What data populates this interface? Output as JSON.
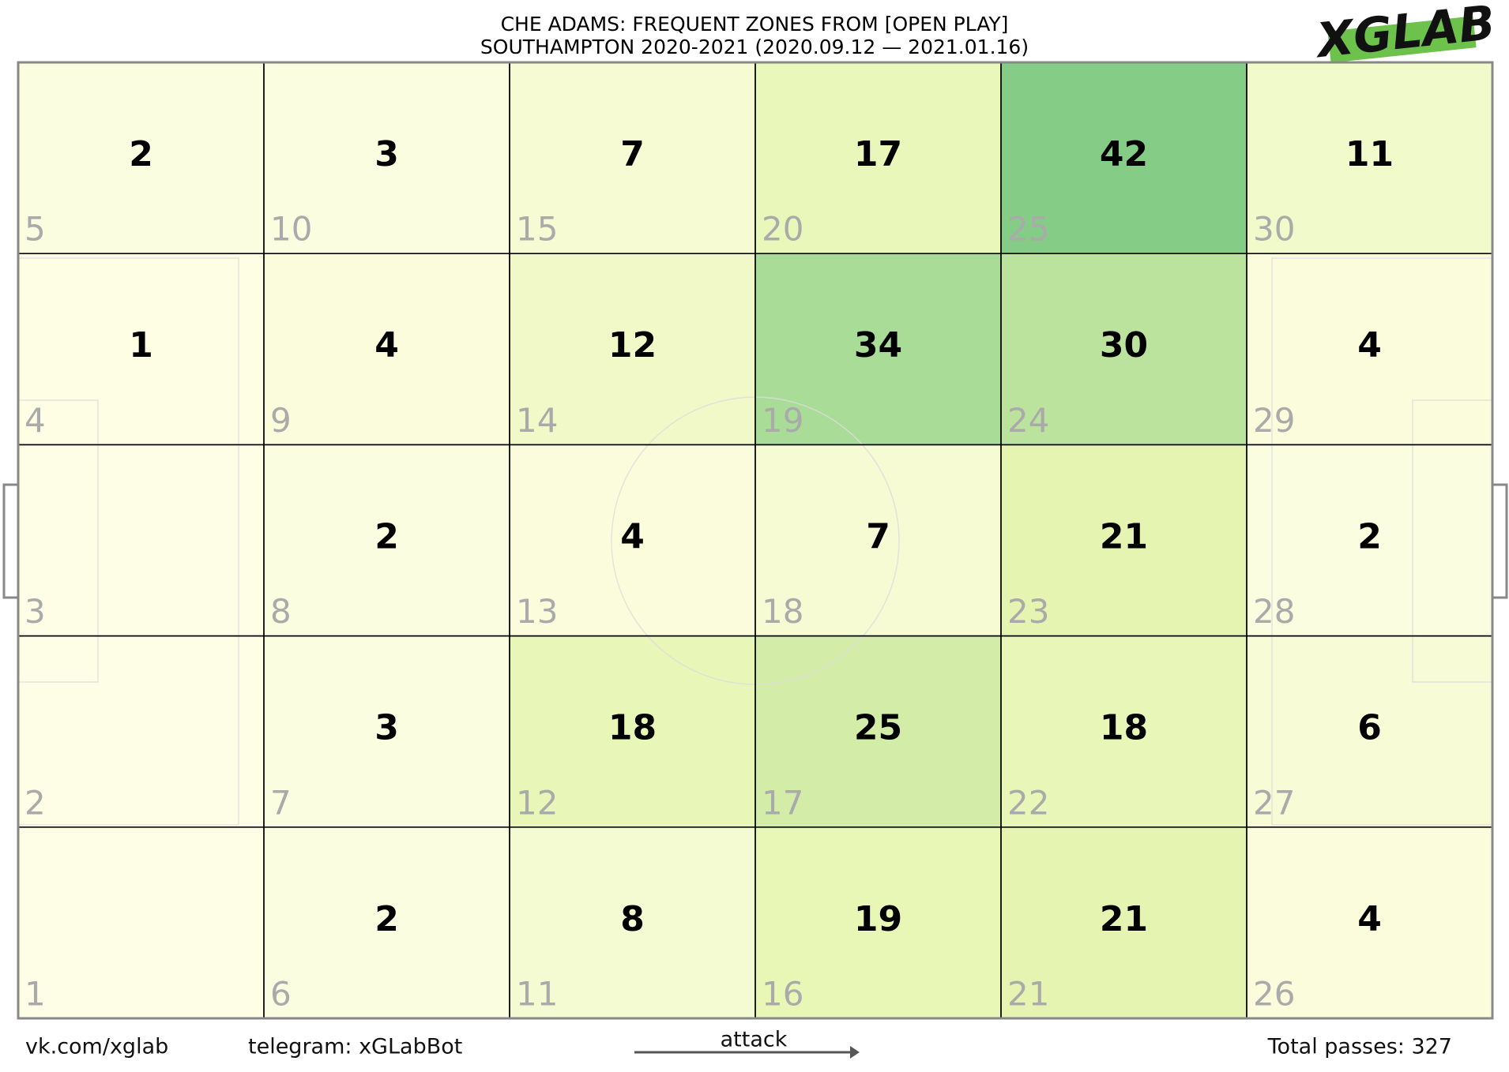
{
  "chart_data": {
    "type": "zone-heatmap",
    "title": "CHE ADAMS: FREQUENT ZONES FROM [OPEN PLAY]",
    "subtitle": "SOUTHAMPTON 2020-2021 (2020.09.12 — 2021.01.16)",
    "logo": "XGLAB",
    "columns": 6,
    "rows": 5,
    "zones": [
      {
        "id": 1,
        "value": null
      },
      {
        "id": 2,
        "value": null
      },
      {
        "id": 3,
        "value": null
      },
      {
        "id": 4,
        "value": 1
      },
      {
        "id": 5,
        "value": 2
      },
      {
        "id": 6,
        "value": 2
      },
      {
        "id": 7,
        "value": 3
      },
      {
        "id": 8,
        "value": 2
      },
      {
        "id": 9,
        "value": 4
      },
      {
        "id": 10,
        "value": 3
      },
      {
        "id": 11,
        "value": 8
      },
      {
        "id": 12,
        "value": 18
      },
      {
        "id": 13,
        "value": 4
      },
      {
        "id": 14,
        "value": 12
      },
      {
        "id": 15,
        "value": 7
      },
      {
        "id": 16,
        "value": 19
      },
      {
        "id": 17,
        "value": 25
      },
      {
        "id": 18,
        "value": 7
      },
      {
        "id": 19,
        "value": 34
      },
      {
        "id": 20,
        "value": 17
      },
      {
        "id": 21,
        "value": 21
      },
      {
        "id": 22,
        "value": 18
      },
      {
        "id": 23,
        "value": 21
      },
      {
        "id": 24,
        "value": 30
      },
      {
        "id": 25,
        "value": 42
      },
      {
        "id": 26,
        "value": 4
      },
      {
        "id": 27,
        "value": 6
      },
      {
        "id": 28,
        "value": 2
      },
      {
        "id": 29,
        "value": 4
      },
      {
        "id": 30,
        "value": 11
      }
    ],
    "colorscale": [
      "#fefee3",
      "#e2f4a8",
      "#78c679"
    ],
    "footer": {
      "left": "vk.com/xglab",
      "middle": "telegram: xGLabBot",
      "arrow": "attack",
      "right": "Total passes: 327"
    }
  }
}
